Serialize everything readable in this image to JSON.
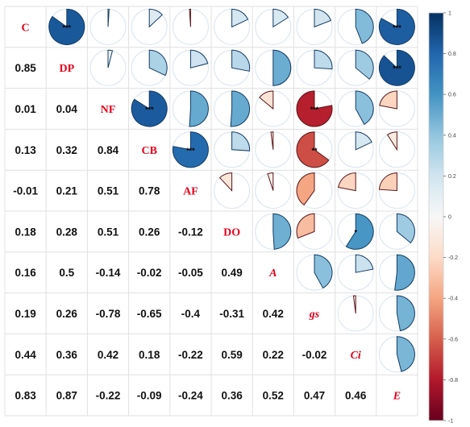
{
  "chart_data": {
    "type": "heatmap",
    "variables": [
      "C",
      "DP",
      "NF",
      "CB",
      "AF",
      "DO",
      "A",
      "gs",
      "Ci",
      "E"
    ],
    "correlations": [
      [
        1,
        0.85,
        0.01,
        0.13,
        -0.01,
        0.18,
        0.16,
        0.19,
        0.44,
        0.83
      ],
      [
        0.85,
        1,
        0.04,
        0.32,
        0.21,
        0.28,
        0.5,
        0.26,
        0.36,
        0.87
      ],
      [
        0.01,
        0.04,
        1,
        0.84,
        0.51,
        0.51,
        -0.14,
        -0.78,
        0.42,
        -0.22
      ],
      [
        0.13,
        0.32,
        0.84,
        1,
        0.78,
        0.26,
        -0.02,
        -0.65,
        0.18,
        -0.09
      ],
      [
        -0.01,
        0.21,
        0.51,
        0.78,
        1,
        -0.12,
        -0.05,
        -0.4,
        -0.22,
        -0.24
      ],
      [
        0.18,
        0.28,
        0.51,
        0.26,
        -0.12,
        1,
        0.49,
        -0.31,
        0.59,
        0.36
      ],
      [
        0.16,
        0.5,
        -0.14,
        -0.02,
        -0.05,
        0.49,
        1,
        0.42,
        0.22,
        0.52
      ],
      [
        0.19,
        0.26,
        -0.78,
        -0.65,
        -0.4,
        -0.31,
        0.42,
        1,
        -0.02,
        0.47
      ],
      [
        0.44,
        0.36,
        0.42,
        0.18,
        -0.22,
        0.59,
        0.22,
        -0.02,
        1,
        0.46
      ],
      [
        0.83,
        0.87,
        -0.22,
        -0.09,
        -0.24,
        0.36,
        0.52,
        0.47,
        0.46,
        1
      ]
    ],
    "lower_labels": [
      [
        "0.85"
      ],
      [
        "0.01",
        "0.04"
      ],
      [
        "0.13",
        "0.32",
        "0.84"
      ],
      [
        "-0.01",
        "0.21",
        "0.51",
        "0.78"
      ],
      [
        "0.18",
        "0.28",
        "0.51",
        "0.26",
        "-0.12"
      ],
      [
        "0.16",
        "0.5",
        "-0.14",
        "-0.02",
        "-0.05",
        "0.49"
      ],
      [
        "0.19",
        "0.26",
        "-0.78",
        "-0.65",
        "-0.4",
        "-0.31",
        "0.42"
      ],
      [
        "0.44",
        "0.36",
        "0.42",
        "0.18",
        "-0.22",
        "0.59",
        "0.22",
        "-0.02"
      ],
      [
        "0.83",
        "0.87",
        "-0.22",
        "-0.09",
        "-0.24",
        "0.36",
        "0.52",
        "0.47",
        "0.46"
      ]
    ],
    "significance": [
      {
        "row": "C",
        "col": "DP",
        "stars": "***"
      },
      {
        "row": "C",
        "col": "E",
        "stars": "***"
      },
      {
        "row": "DP",
        "col": "E",
        "stars": "***"
      },
      {
        "row": "NF",
        "col": "CB",
        "stars": "***"
      },
      {
        "row": "NF",
        "col": "gs",
        "stars": "***"
      },
      {
        "row": "CB",
        "col": "AF",
        "stars": "***"
      },
      {
        "row": "CB",
        "col": "gs",
        "stars": "**"
      },
      {
        "row": "DO",
        "col": "Ci",
        "stars": "*"
      }
    ],
    "colorbar": {
      "ticks": [
        "1",
        "0.8",
        "0.6",
        "0.4",
        "0.2",
        "0",
        "-0.2",
        "-0.4",
        "-0.6",
        "-0.8",
        "-1"
      ],
      "values": [
        1,
        0.8,
        0.6,
        0.4,
        0.2,
        0,
        -0.2,
        -0.4,
        -0.6,
        -0.8,
        -1
      ],
      "range": [
        -1,
        1
      ]
    },
    "colors": {
      "positive": "#2166ac",
      "negative": "#b2182b",
      "neutral": "#f7f7f7",
      "label": "#e8001c",
      "grid": "#e0e0e0"
    }
  }
}
